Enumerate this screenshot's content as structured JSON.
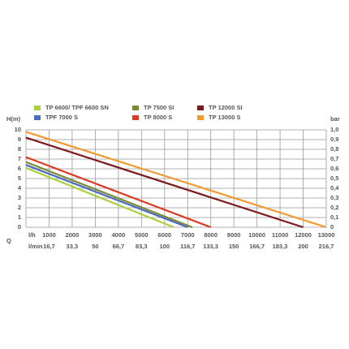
{
  "chart_data": {
    "type": "line",
    "ylabel": "H(m)",
    "y2label": "bar",
    "xlabel": "l/h",
    "x2label": "l/min",
    "xgroup_label": "Q",
    "xlim": [
      0,
      13000
    ],
    "xticks": [
      1000,
      2000,
      3000,
      4000,
      5000,
      6000,
      7000,
      8000,
      9000,
      10000,
      11000,
      12000,
      13000
    ],
    "x2lim": [
      0,
      216.7
    ],
    "x2ticks": [
      {
        "value": 16.7,
        "label": "16,7"
      },
      {
        "value": 33.3,
        "label": "33,3"
      },
      50,
      {
        "value": 66.7,
        "label": "66,7"
      },
      {
        "value": 83.3,
        "label": "83,3"
      },
      100,
      {
        "value": 116.7,
        "label": "116,7"
      },
      {
        "value": 133.3,
        "label": "133,3"
      },
      150,
      {
        "value": 166.7,
        "label": "166,7"
      },
      {
        "value": 183.3,
        "label": "183,3"
      },
      200,
      {
        "value": 216.7,
        "label": "216,7"
      }
    ],
    "ylim": [
      0,
      10
    ],
    "yticks": [
      0,
      1,
      2,
      3,
      4,
      5,
      6,
      7,
      8,
      9,
      10
    ],
    "y2lim": [
      0,
      1
    ],
    "y2ticks": [
      0,
      {
        "value": 0.1,
        "label": "0,1"
      },
      {
        "value": 0.2,
        "label": "0,2"
      },
      {
        "value": 0.3,
        "label": "0,3"
      },
      {
        "value": 0.4,
        "label": "0,4"
      },
      {
        "value": 0.5,
        "label": "0,5"
      },
      {
        "value": 0.6,
        "label": "0,6"
      },
      {
        "value": 0.7,
        "label": "0,7"
      },
      {
        "value": 0.8,
        "label": "0,8"
      },
      {
        "value": 0.9,
        "label": "0,9"
      },
      {
        "value": 1,
        "label": "1,0"
      }
    ],
    "grid": true,
    "series": [
      {
        "name": "TP 6600/ TPF 6600 SN",
        "color": "#a9d13f",
        "x": [
          0,
          6400
        ],
        "values": [
          6.1,
          0
        ]
      },
      {
        "name": "TP 7500 SI",
        "color": "#7b8a33",
        "x": [
          0,
          7200
        ],
        "values": [
          6.7,
          0
        ]
      },
      {
        "name": "TP 12000 SI",
        "color": "#7a1a1e",
        "x": [
          0,
          12000
        ],
        "values": [
          9.2,
          0
        ]
      },
      {
        "name": "TPF 7000 S",
        "color": "#4a6bc0",
        "x": [
          0,
          7000
        ],
        "values": [
          6.4,
          0
        ]
      },
      {
        "name": "TP 8000 S",
        "color": "#dc3a22",
        "x": [
          0,
          8000
        ],
        "values": [
          7.2,
          0
        ]
      },
      {
        "name": "TP 13000 S",
        "color": "#f19a30",
        "x": [
          0,
          13000
        ],
        "values": [
          9.8,
          0
        ]
      }
    ]
  }
}
